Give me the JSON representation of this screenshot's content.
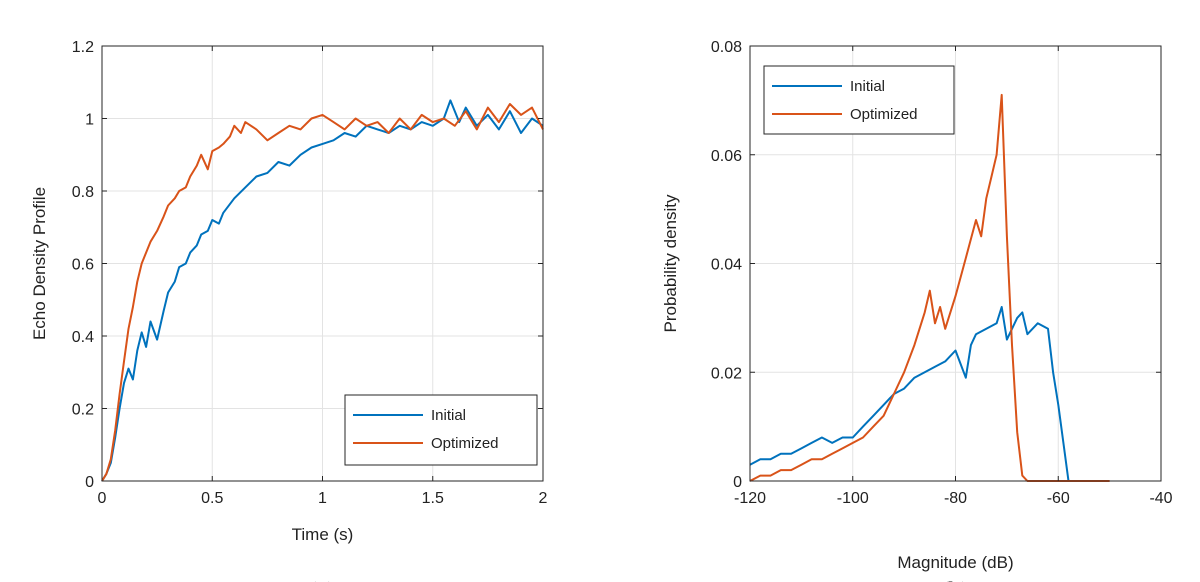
{
  "chart_data": [
    {
      "type": "line",
      "panel": "a",
      "panel_label": "(a)",
      "xlabel": "Time (s)",
      "ylabel": "Echo Density Profile",
      "xlim": [
        0,
        2
      ],
      "ylim": [
        0,
        1.2
      ],
      "xticks": [
        0,
        0.5,
        1,
        1.5,
        2
      ],
      "xtick_labels": [
        "0",
        "0.5",
        "1",
        "1.5",
        "2"
      ],
      "yticks": [
        0,
        0.2,
        0.4,
        0.6,
        0.8,
        1,
        1.2
      ],
      "ytick_labels": [
        "0",
        "0.2",
        "0.4",
        "0.6",
        "0.8",
        "1",
        "1.2"
      ],
      "grid": true,
      "legend_position": "bottom-right",
      "series": [
        {
          "name": "Initial",
          "color": "#0072BD",
          "x": [
            0,
            0.02,
            0.04,
            0.06,
            0.08,
            0.1,
            0.12,
            0.14,
            0.16,
            0.18,
            0.2,
            0.22,
            0.25,
            0.28,
            0.3,
            0.33,
            0.35,
            0.38,
            0.4,
            0.43,
            0.45,
            0.48,
            0.5,
            0.53,
            0.55,
            0.6,
            0.65,
            0.7,
            0.75,
            0.8,
            0.85,
            0.9,
            0.95,
            1.0,
            1.05,
            1.1,
            1.15,
            1.2,
            1.25,
            1.3,
            1.35,
            1.4,
            1.45,
            1.5,
            1.55,
            1.58,
            1.62,
            1.65,
            1.7,
            1.75,
            1.8,
            1.85,
            1.9,
            1.95,
            2.0
          ],
          "y": [
            0,
            0.02,
            0.05,
            0.12,
            0.2,
            0.27,
            0.31,
            0.28,
            0.36,
            0.41,
            0.37,
            0.44,
            0.39,
            0.47,
            0.52,
            0.55,
            0.59,
            0.6,
            0.63,
            0.65,
            0.68,
            0.69,
            0.72,
            0.71,
            0.74,
            0.78,
            0.81,
            0.84,
            0.85,
            0.88,
            0.87,
            0.9,
            0.92,
            0.93,
            0.94,
            0.96,
            0.95,
            0.98,
            0.97,
            0.96,
            0.98,
            0.97,
            0.99,
            0.98,
            1.0,
            1.05,
            0.99,
            1.03,
            0.98,
            1.01,
            0.97,
            1.02,
            0.96,
            1.0,
            0.98
          ]
        },
        {
          "name": "Optimized",
          "color": "#D95319",
          "x": [
            0,
            0.02,
            0.04,
            0.06,
            0.08,
            0.1,
            0.12,
            0.14,
            0.16,
            0.18,
            0.2,
            0.22,
            0.25,
            0.28,
            0.3,
            0.33,
            0.35,
            0.38,
            0.4,
            0.43,
            0.45,
            0.48,
            0.5,
            0.53,
            0.55,
            0.58,
            0.6,
            0.63,
            0.65,
            0.7,
            0.75,
            0.8,
            0.85,
            0.9,
            0.95,
            1.0,
            1.05,
            1.1,
            1.15,
            1.2,
            1.25,
            1.3,
            1.35,
            1.4,
            1.45,
            1.5,
            1.55,
            1.6,
            1.65,
            1.7,
            1.75,
            1.8,
            1.85,
            1.9,
            1.95,
            2.0
          ],
          "y": [
            0,
            0.02,
            0.06,
            0.14,
            0.24,
            0.33,
            0.42,
            0.48,
            0.55,
            0.6,
            0.63,
            0.66,
            0.69,
            0.73,
            0.76,
            0.78,
            0.8,
            0.81,
            0.84,
            0.87,
            0.9,
            0.86,
            0.91,
            0.92,
            0.93,
            0.95,
            0.98,
            0.96,
            0.99,
            0.97,
            0.94,
            0.96,
            0.98,
            0.97,
            1.0,
            1.01,
            0.99,
            0.97,
            1.0,
            0.98,
            0.99,
            0.96,
            1.0,
            0.97,
            1.01,
            0.99,
            1.0,
            0.98,
            1.02,
            0.97,
            1.03,
            0.99,
            1.04,
            1.01,
            1.03,
            0.97
          ]
        }
      ]
    },
    {
      "type": "line",
      "panel": "b",
      "panel_label": "(b)",
      "xlabel": "Magnitude (dB)",
      "ylabel": "Probability density",
      "xlim": [
        -120,
        -40
      ],
      "ylim": [
        0,
        0.08
      ],
      "xticks": [
        -120,
        -100,
        -80,
        -60,
        -40
      ],
      "xtick_labels": [
        "-120",
        "-100",
        "-80",
        "-60",
        "-40"
      ],
      "yticks": [
        0,
        0.02,
        0.04,
        0.06,
        0.08
      ],
      "ytick_labels": [
        "0",
        "0.02",
        "0.04",
        "0.06",
        "0.08"
      ],
      "grid": true,
      "legend_position": "top-left",
      "series": [
        {
          "name": "Initial",
          "color": "#0072BD",
          "x": [
            -120,
            -118,
            -116,
            -114,
            -112,
            -110,
            -108,
            -106,
            -104,
            -102,
            -100,
            -98,
            -96,
            -94,
            -92,
            -90,
            -88,
            -86,
            -84,
            -82,
            -80,
            -78,
            -77,
            -76,
            -74,
            -72,
            -71,
            -70,
            -69,
            -68,
            -67,
            -66,
            -64,
            -62,
            -61,
            -60,
            -59,
            -58
          ],
          "y": [
            0.003,
            0.004,
            0.004,
            0.005,
            0.005,
            0.006,
            0.007,
            0.008,
            0.007,
            0.008,
            0.008,
            0.01,
            0.012,
            0.014,
            0.016,
            0.017,
            0.019,
            0.02,
            0.021,
            0.022,
            0.024,
            0.019,
            0.025,
            0.027,
            0.028,
            0.029,
            0.032,
            0.026,
            0.028,
            0.03,
            0.031,
            0.027,
            0.029,
            0.028,
            0.02,
            0.014,
            0.007,
            0.0
          ]
        },
        {
          "name": "Optimized",
          "color": "#D95319",
          "x": [
            -120,
            -118,
            -116,
            -114,
            -112,
            -110,
            -108,
            -106,
            -104,
            -102,
            -100,
            -98,
            -96,
            -94,
            -92,
            -90,
            -88,
            -86,
            -85,
            -84,
            -83,
            -82,
            -80,
            -78,
            -76,
            -75,
            -74,
            -73,
            -72,
            -71,
            -70,
            -69,
            -68,
            -67,
            -66,
            -64,
            -60,
            -55,
            -50
          ],
          "y": [
            0.0,
            0.001,
            0.001,
            0.002,
            0.002,
            0.003,
            0.004,
            0.004,
            0.005,
            0.006,
            0.007,
            0.008,
            0.01,
            0.012,
            0.016,
            0.02,
            0.025,
            0.031,
            0.035,
            0.029,
            0.032,
            0.028,
            0.034,
            0.041,
            0.048,
            0.045,
            0.052,
            0.056,
            0.06,
            0.071,
            0.045,
            0.025,
            0.009,
            0.001,
            0.0,
            0.0,
            0.0,
            0.0,
            0.0
          ]
        }
      ]
    }
  ]
}
